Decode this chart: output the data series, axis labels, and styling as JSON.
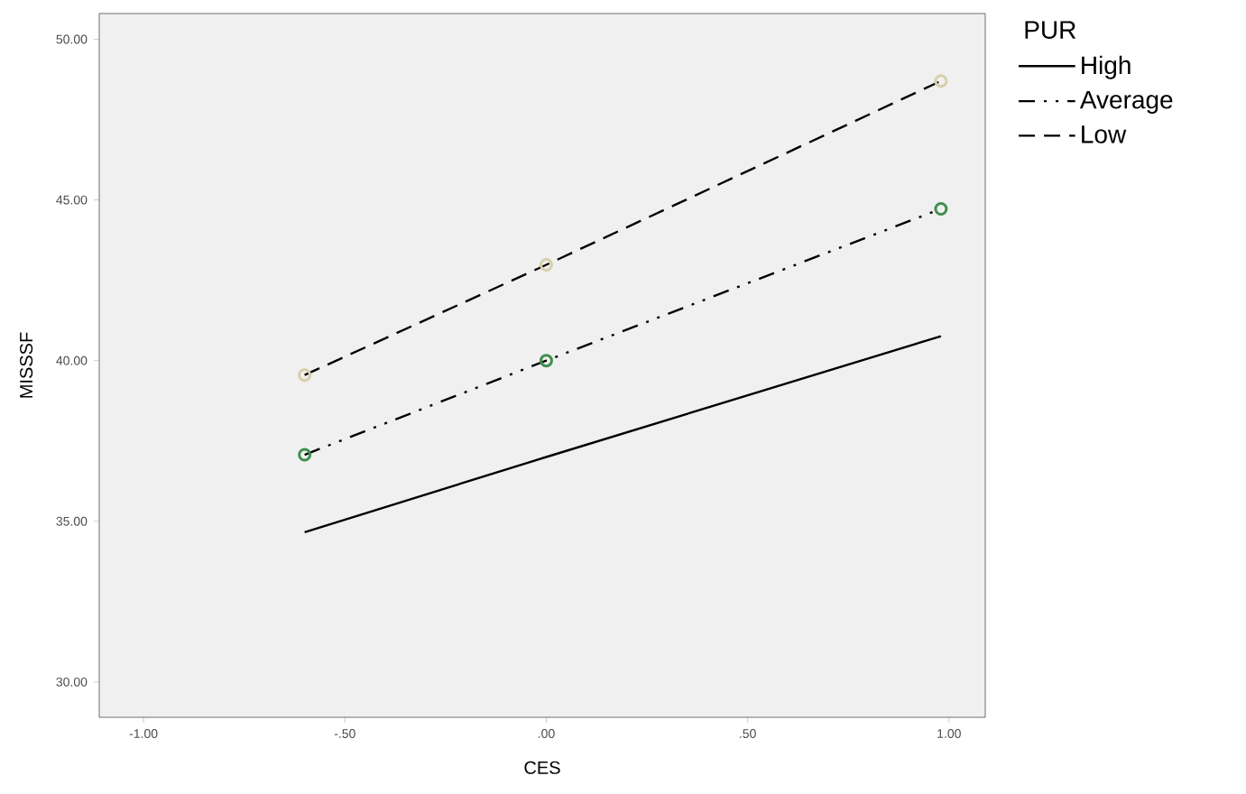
{
  "chart_data": {
    "type": "line",
    "xlabel": "CES",
    "ylabel": "MISSSF",
    "legend_title": "PUR",
    "legend": "right",
    "grid": false,
    "x": [
      -0.6,
      0,
      0.98
    ],
    "series": [
      {
        "name": "High",
        "color": "#000000",
        "values": [
          34.66,
          37.0,
          40.76
        ],
        "line_style": "solid",
        "marker": "none"
      },
      {
        "name": "Average",
        "color": "#000000",
        "colors": [
          "#3f8f50",
          "#3f8f50",
          "#3f8f50"
        ],
        "values": [
          37.07,
          40.0,
          44.72
        ],
        "line_style": "dashdot",
        "marker": "circle"
      },
      {
        "name": "Low",
        "color": "#000000",
        "colors": [
          "#d6cfaa",
          "#d6cfaa",
          "#d6cfaa"
        ],
        "values": [
          39.55,
          42.98,
          48.7
        ],
        "line_style": "dashed",
        "marker": "circle"
      }
    ],
    "xlim": [
      -1.11,
      1.09
    ],
    "xticks": [
      {
        "value": -1,
        "label": "-1.00"
      },
      {
        "value": -0.5,
        "label": "-.50"
      },
      {
        "value": 0,
        "label": ".00"
      },
      {
        "value": 0.5,
        "label": ".50"
      },
      {
        "value": 1,
        "label": "1.00"
      }
    ],
    "ylim": [
      28.9,
      50.8
    ],
    "yticks": [
      {
        "value": 30,
        "label": "30.00"
      },
      {
        "value": 35,
        "label": "35.00"
      },
      {
        "value": 40,
        "label": "40.00"
      },
      {
        "value": 45,
        "label": "45.00"
      },
      {
        "value": 50,
        "label": "50.00"
      }
    ]
  }
}
